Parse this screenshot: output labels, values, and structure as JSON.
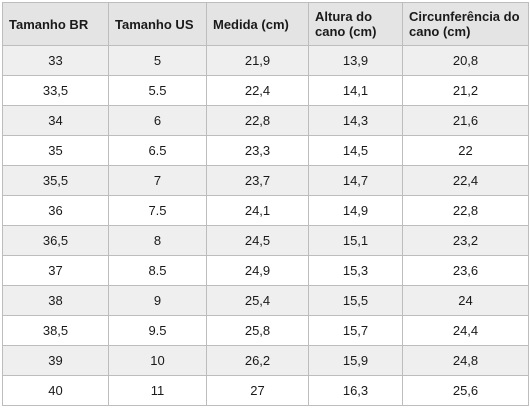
{
  "table": {
    "header": [
      "Tamanho BR",
      "Tamanho US",
      "Medida (cm)",
      "Altura do cano (cm)",
      "Circunferência do cano (cm)"
    ],
    "rows": [
      [
        "33",
        "5",
        "21,9",
        "13,9",
        "20,8"
      ],
      [
        "33,5",
        "5.5",
        "22,4",
        "14,1",
        "21,2"
      ],
      [
        "34",
        "6",
        "22,8",
        "14,3",
        "21,6"
      ],
      [
        "35",
        "6.5",
        "23,3",
        "14,5",
        "22"
      ],
      [
        "35,5",
        "7",
        "23,7",
        "14,7",
        "22,4"
      ],
      [
        "36",
        "7.5",
        "24,1",
        "14,9",
        "22,8"
      ],
      [
        "36,5",
        "8",
        "24,5",
        "15,1",
        "23,2"
      ],
      [
        "37",
        "8.5",
        "24,9",
        "15,3",
        "23,6"
      ],
      [
        "38",
        "9",
        "25,4",
        "15,5",
        "24"
      ],
      [
        "38,5",
        "9.5",
        "25,8",
        "15,7",
        "24,4"
      ],
      [
        "39",
        "10",
        "26,2",
        "15,9",
        "24,8"
      ],
      [
        "40",
        "11",
        "27",
        "16,3",
        "25,6"
      ]
    ]
  }
}
